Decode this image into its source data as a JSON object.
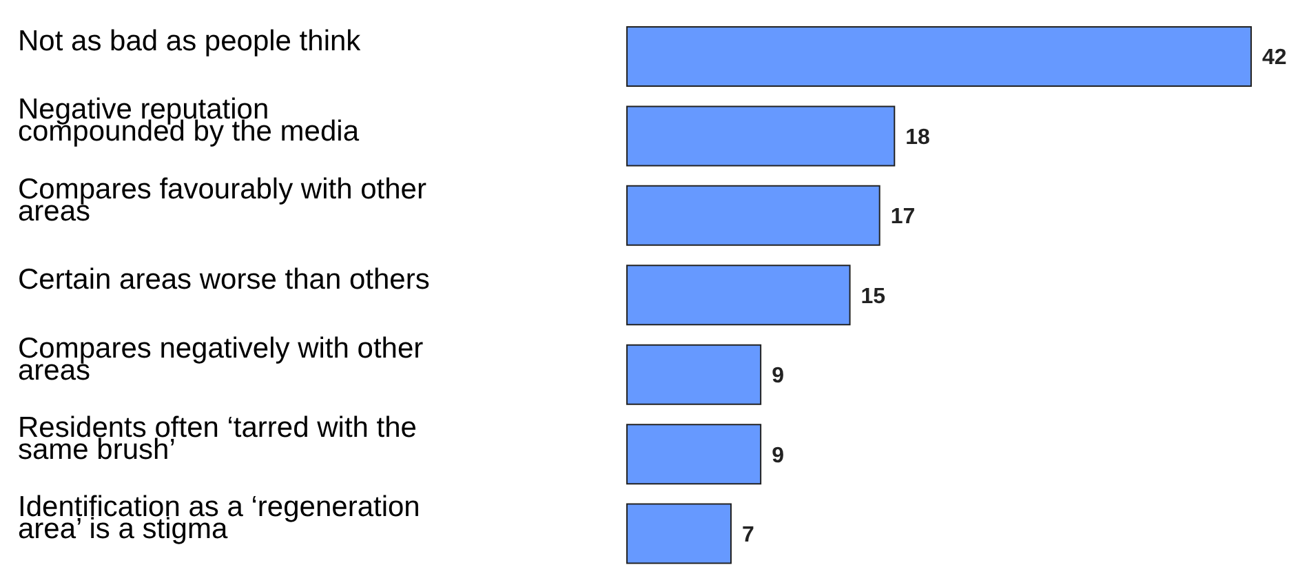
{
  "chart_data": {
    "type": "bar",
    "orientation": "horizontal",
    "categories": [
      "Not as bad as people think",
      "Negative reputation compounded by the media",
      "Compares favourably with other areas",
      "Certain areas worse than others",
      "Compares negatively with other areas",
      "Residents often ‘tarred with the same brush’",
      "Identification as a ‘regeneration area’ is a stigma"
    ],
    "values": [
      42,
      18,
      17,
      15,
      9,
      9,
      7
    ],
    "color": "#6699ff",
    "data_labels": true
  }
}
